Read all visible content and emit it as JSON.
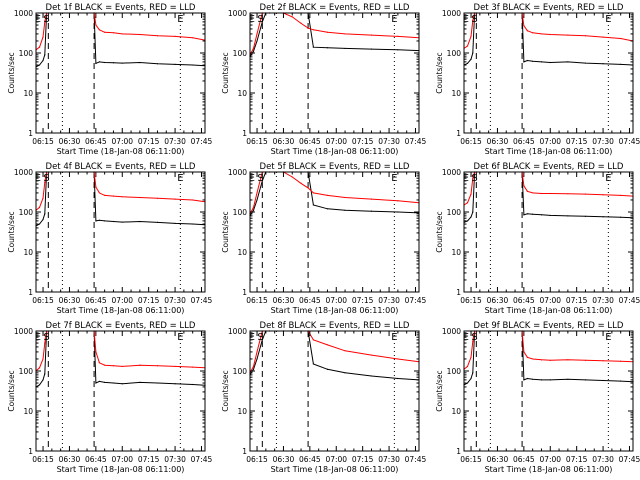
{
  "figure": {
    "background": "#ffffff",
    "axis_color": "#000000"
  },
  "shared": {
    "xlabel": "Start Time (18-Jan-08 06:11:00)",
    "ylabel": "Counts/sec",
    "x_tick_labels": [
      "06:15",
      "06:30",
      "06:45",
      "07:00",
      "07:15",
      "07:30",
      "07:45"
    ],
    "y_tick_labels": [
      "1",
      "10",
      "100",
      "1000"
    ],
    "flag_labels": [
      {
        "text": "E",
        "time": "06:12"
      },
      {
        "text": "S",
        "time": "06:17"
      },
      {
        "text": "E",
        "time": "07:33"
      }
    ],
    "dashed_lines": [
      "06:18",
      "06:44"
    ],
    "dotted_lines": [
      "06:26",
      "07:33"
    ],
    "series_colors": {
      "events": "#000000",
      "lld": "#ff0000"
    },
    "xlim": [
      "06:11",
      "07:47"
    ],
    "ylim": [
      1,
      1000
    ],
    "y_scale": "log"
  },
  "chart_data": [
    {
      "type": "line",
      "title": "Det  1f  BLACK = Events, RED = LLD",
      "x": [
        "06:11",
        "06:13",
        "06:15",
        "06:16",
        "06:17",
        "06:18",
        "06:44",
        "06:45",
        "06:47",
        "06:50",
        "06:55",
        "07:00",
        "07:10",
        "07:20",
        "07:30",
        "07:40",
        "07:47"
      ],
      "series": [
        {
          "name": "Events",
          "values": [
            45,
            50,
            65,
            90,
            1000,
            1000,
            1000,
            55,
            60,
            58,
            57,
            56,
            58,
            54,
            52,
            50,
            48
          ]
        },
        {
          "name": "LLD",
          "values": [
            120,
            140,
            250,
            600,
            1000,
            1000,
            1000,
            500,
            380,
            330,
            320,
            300,
            290,
            270,
            260,
            240,
            210
          ]
        }
      ]
    },
    {
      "type": "line",
      "title": "Det  2f  BLACK = Events, RED = LLD",
      "x": [
        "06:11",
        "06:13",
        "06:15",
        "06:18",
        "06:20",
        "06:22",
        "06:30",
        "06:35",
        "06:40",
        "06:44",
        "06:47",
        "06:55",
        "07:05",
        "07:20",
        "07:35",
        "07:47"
      ],
      "series": [
        {
          "name": "Events",
          "values": [
            80,
            110,
            200,
            600,
            1000,
            1000,
            1000,
            1000,
            1000,
            1000,
            140,
            135,
            130,
            125,
            120,
            115
          ]
        },
        {
          "name": "LLD",
          "values": [
            90,
            130,
            300,
            1000,
            1000,
            1000,
            1000,
            800,
            550,
            420,
            380,
            330,
            300,
            280,
            260,
            240
          ]
        }
      ]
    },
    {
      "type": "line",
      "title": "Det  3f  BLACK = Events, RED = LLD",
      "x": [
        "06:11",
        "06:13",
        "06:15",
        "06:16",
        "06:17",
        "06:18",
        "06:44",
        "06:45",
        "06:47",
        "06:50",
        "06:55",
        "07:00",
        "07:10",
        "07:20",
        "07:30",
        "07:40",
        "07:47"
      ],
      "series": [
        {
          "name": "Events",
          "values": [
            50,
            55,
            70,
            100,
            1000,
            1000,
            1000,
            60,
            65,
            62,
            60,
            58,
            60,
            56,
            54,
            52,
            50
          ]
        },
        {
          "name": "LLD",
          "values": [
            130,
            150,
            260,
            650,
            1000,
            1000,
            1000,
            480,
            360,
            320,
            300,
            290,
            280,
            270,
            250,
            230,
            200
          ]
        }
      ]
    },
    {
      "type": "line",
      "title": "Det  4f  BLACK = Events, RED = LLD",
      "x": [
        "06:11",
        "06:13",
        "06:15",
        "06:16",
        "06:17",
        "06:18",
        "06:44",
        "06:45",
        "06:47",
        "06:50",
        "06:55",
        "07:00",
        "07:10",
        "07:20",
        "07:30",
        "07:40",
        "07:47"
      ],
      "series": [
        {
          "name": "Events",
          "values": [
            45,
            50,
            65,
            90,
            1000,
            1000,
            1000,
            60,
            62,
            60,
            58,
            56,
            58,
            55,
            52,
            50,
            48
          ]
        },
        {
          "name": "LLD",
          "values": [
            110,
            130,
            220,
            550,
            1000,
            1000,
            1000,
            420,
            300,
            260,
            250,
            240,
            230,
            220,
            210,
            200,
            180
          ]
        }
      ]
    },
    {
      "type": "line",
      "title": "Det  5f  BLACK = Events, RED = LLD",
      "x": [
        "06:11",
        "06:13",
        "06:15",
        "06:18",
        "06:20",
        "06:22",
        "06:30",
        "06:35",
        "06:40",
        "06:44",
        "06:47",
        "06:55",
        "07:05",
        "07:20",
        "07:35",
        "07:47"
      ],
      "series": [
        {
          "name": "Events",
          "values": [
            80,
            110,
            200,
            600,
            1000,
            1000,
            1000,
            1000,
            1000,
            1000,
            150,
            120,
            110,
            105,
            100,
            95
          ]
        },
        {
          "name": "LLD",
          "values": [
            90,
            130,
            300,
            1000,
            1000,
            1000,
            1000,
            750,
            520,
            400,
            300,
            260,
            230,
            210,
            190,
            170
          ]
        }
      ]
    },
    {
      "type": "line",
      "title": "Det  6f  BLACK = Events, RED = LLD",
      "x": [
        "06:11",
        "06:13",
        "06:15",
        "06:16",
        "06:17",
        "06:18",
        "06:44",
        "06:45",
        "06:47",
        "06:50",
        "06:55",
        "07:00",
        "07:10",
        "07:20",
        "07:30",
        "07:40",
        "07:47"
      ],
      "series": [
        {
          "name": "Events",
          "values": [
            55,
            60,
            75,
            100,
            1000,
            1000,
            1000,
            85,
            90,
            88,
            85,
            82,
            80,
            78,
            76,
            74,
            72
          ]
        },
        {
          "name": "LLD",
          "values": [
            150,
            170,
            280,
            700,
            1000,
            1000,
            1000,
            450,
            330,
            300,
            290,
            290,
            285,
            280,
            270,
            260,
            250
          ]
        }
      ]
    },
    {
      "type": "line",
      "title": "Det  7f  BLACK = Events, RED = LLD",
      "x": [
        "06:11",
        "06:13",
        "06:15",
        "06:16",
        "06:17",
        "06:18",
        "06:44",
        "06:45",
        "06:47",
        "06:50",
        "06:55",
        "07:00",
        "07:10",
        "07:20",
        "07:30",
        "07:40",
        "07:47"
      ],
      "series": [
        {
          "name": "Events",
          "values": [
            40,
            45,
            60,
            85,
            1000,
            1000,
            1000,
            50,
            55,
            52,
            50,
            48,
            52,
            50,
            48,
            46,
            44
          ]
        },
        {
          "name": "LLD",
          "values": [
            100,
            120,
            200,
            500,
            1000,
            1000,
            1000,
            300,
            160,
            140,
            135,
            130,
            140,
            135,
            130,
            125,
            120
          ]
        }
      ]
    },
    {
      "type": "line",
      "title": "Det  8f  BLACK = Events, RED = LLD",
      "x": [
        "06:11",
        "06:13",
        "06:15",
        "06:18",
        "06:20",
        "06:22",
        "06:30",
        "06:35",
        "06:40",
        "06:44",
        "06:47",
        "06:55",
        "07:05",
        "07:20",
        "07:35",
        "07:47"
      ],
      "series": [
        {
          "name": "Events",
          "values": [
            80,
            110,
            200,
            600,
            1000,
            1000,
            1000,
            1000,
            1000,
            1000,
            150,
            110,
            90,
            75,
            65,
            60
          ]
        },
        {
          "name": "LLD",
          "values": [
            90,
            130,
            300,
            1000,
            1000,
            1000,
            1000,
            1000,
            1000,
            1000,
            600,
            450,
            320,
            250,
            200,
            170
          ]
        }
      ]
    },
    {
      "type": "line",
      "title": "Det  9f  BLACK = Events, RED = LLD",
      "x": [
        "06:11",
        "06:13",
        "06:15",
        "06:16",
        "06:17",
        "06:18",
        "06:44",
        "06:45",
        "06:47",
        "06:50",
        "06:55",
        "07:00",
        "07:10",
        "07:20",
        "07:30",
        "07:40",
        "07:47"
      ],
      "series": [
        {
          "name": "Events",
          "values": [
            45,
            50,
            65,
            90,
            1000,
            1000,
            1000,
            60,
            65,
            62,
            60,
            60,
            62,
            60,
            58,
            56,
            54
          ]
        },
        {
          "name": "LLD",
          "values": [
            110,
            130,
            220,
            550,
            1000,
            1000,
            1000,
            300,
            220,
            200,
            190,
            185,
            190,
            185,
            180,
            175,
            170
          ]
        }
      ]
    }
  ]
}
